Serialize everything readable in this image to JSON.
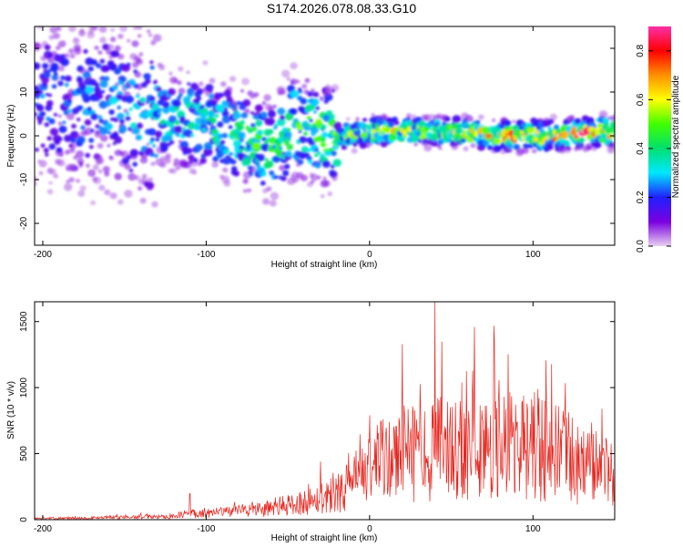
{
  "figure_title": "S174.2026.078.08.33.G10",
  "chart_data": [
    {
      "type": "heatmap",
      "name": "spectrogram",
      "xlabel": "Height of straight line (km)",
      "ylabel": "Frequency (Hz)",
      "xlim": [
        -205,
        150
      ],
      "ylim": [
        -25,
        25
      ],
      "xticks": [
        -200,
        -100,
        0,
        100
      ],
      "yticks": [
        -20,
        -10,
        0,
        10,
        20
      ],
      "colorbar": {
        "label": "Normalized spectral amplitude",
        "range": [
          0.0,
          0.9
        ],
        "ticks": [
          0.0,
          0.2,
          0.4,
          0.6,
          0.8
        ],
        "colormap": [
          "#e8d0f0",
          "#7a00e0",
          "#2020ff",
          "#00e8ff",
          "#00e070",
          "#40ff00",
          "#ffff00",
          "#ff9000",
          "#ff0000",
          "#ff2fa8"
        ]
      },
      "ridge": {
        "description": "narrow high-amplitude band centred near 0 Hz for heights above about -20 km, broadening and scattering at lower heights",
        "center_freq_hz": [
          [
            -190,
            8
          ],
          [
            -150,
            6
          ],
          [
            -120,
            4
          ],
          [
            -100,
            3
          ],
          [
            -80,
            0
          ],
          [
            -60,
            -3
          ],
          [
            -45,
            3
          ],
          [
            -30,
            0
          ],
          [
            -15,
            0
          ],
          [
            0,
            1
          ],
          [
            20,
            1
          ],
          [
            50,
            1
          ],
          [
            80,
            0
          ],
          [
            110,
            0
          ],
          [
            140,
            1
          ],
          [
            150,
            1
          ]
        ],
        "peak_amplitude": [
          [
            -200,
            0.25
          ],
          [
            -150,
            0.3
          ],
          [
            -110,
            0.4
          ],
          [
            -60,
            0.5
          ],
          [
            -20,
            0.55
          ],
          [
            0,
            0.6
          ],
          [
            40,
            0.65
          ],
          [
            80,
            0.8
          ],
          [
            120,
            0.85
          ],
          [
            148,
            0.9
          ]
        ]
      }
    },
    {
      "type": "line",
      "name": "snr",
      "xlabel": "Height of straight line (km)",
      "ylabel": "SNR (10 * v/v)",
      "xlim": [
        -205,
        150
      ],
      "ylim": [
        0,
        1650
      ],
      "xticks": [
        -200,
        -100,
        0,
        100
      ],
      "yticks": [
        0,
        500,
        1000,
        1500
      ],
      "color": "#e8261f",
      "envelope": {
        "description": "noisy SNR trace; noise floor near 10-20 below -100 km, rising steadily to peaks of 1300-1650 between 20 and 90 km, then ~900 near 140 km",
        "x": [
          -205,
          -180,
          -150,
          -120,
          -110,
          -100,
          -80,
          -60,
          -40,
          -30,
          -20,
          -10,
          0,
          10,
          20,
          30,
          40,
          50,
          60,
          70,
          80,
          90,
          100,
          110,
          120,
          130,
          140,
          150
        ],
        "max": [
          25,
          30,
          45,
          60,
          200,
          90,
          140,
          160,
          280,
          440,
          360,
          600,
          800,
          1100,
          1330,
          1100,
          1650,
          1300,
          1530,
          1360,
          1540,
          1180,
          1400,
          1200,
          1180,
          1000,
          920,
          700
        ],
        "median": [
          10,
          12,
          18,
          25,
          50,
          45,
          70,
          90,
          130,
          170,
          200,
          280,
          400,
          450,
          500,
          500,
          520,
          560,
          560,
          520,
          560,
          540,
          560,
          520,
          480,
          420,
          430,
          300
        ]
      },
      "annotated_peaks": [
        {
          "x": 40,
          "y": 1650
        },
        {
          "x": 64,
          "y": 1530
        },
        {
          "x": 76,
          "y": 1540
        },
        {
          "x": 20,
          "y": 1330
        },
        {
          "x": -110,
          "y": 200
        },
        {
          "x": -30,
          "y": 440
        }
      ]
    }
  ]
}
